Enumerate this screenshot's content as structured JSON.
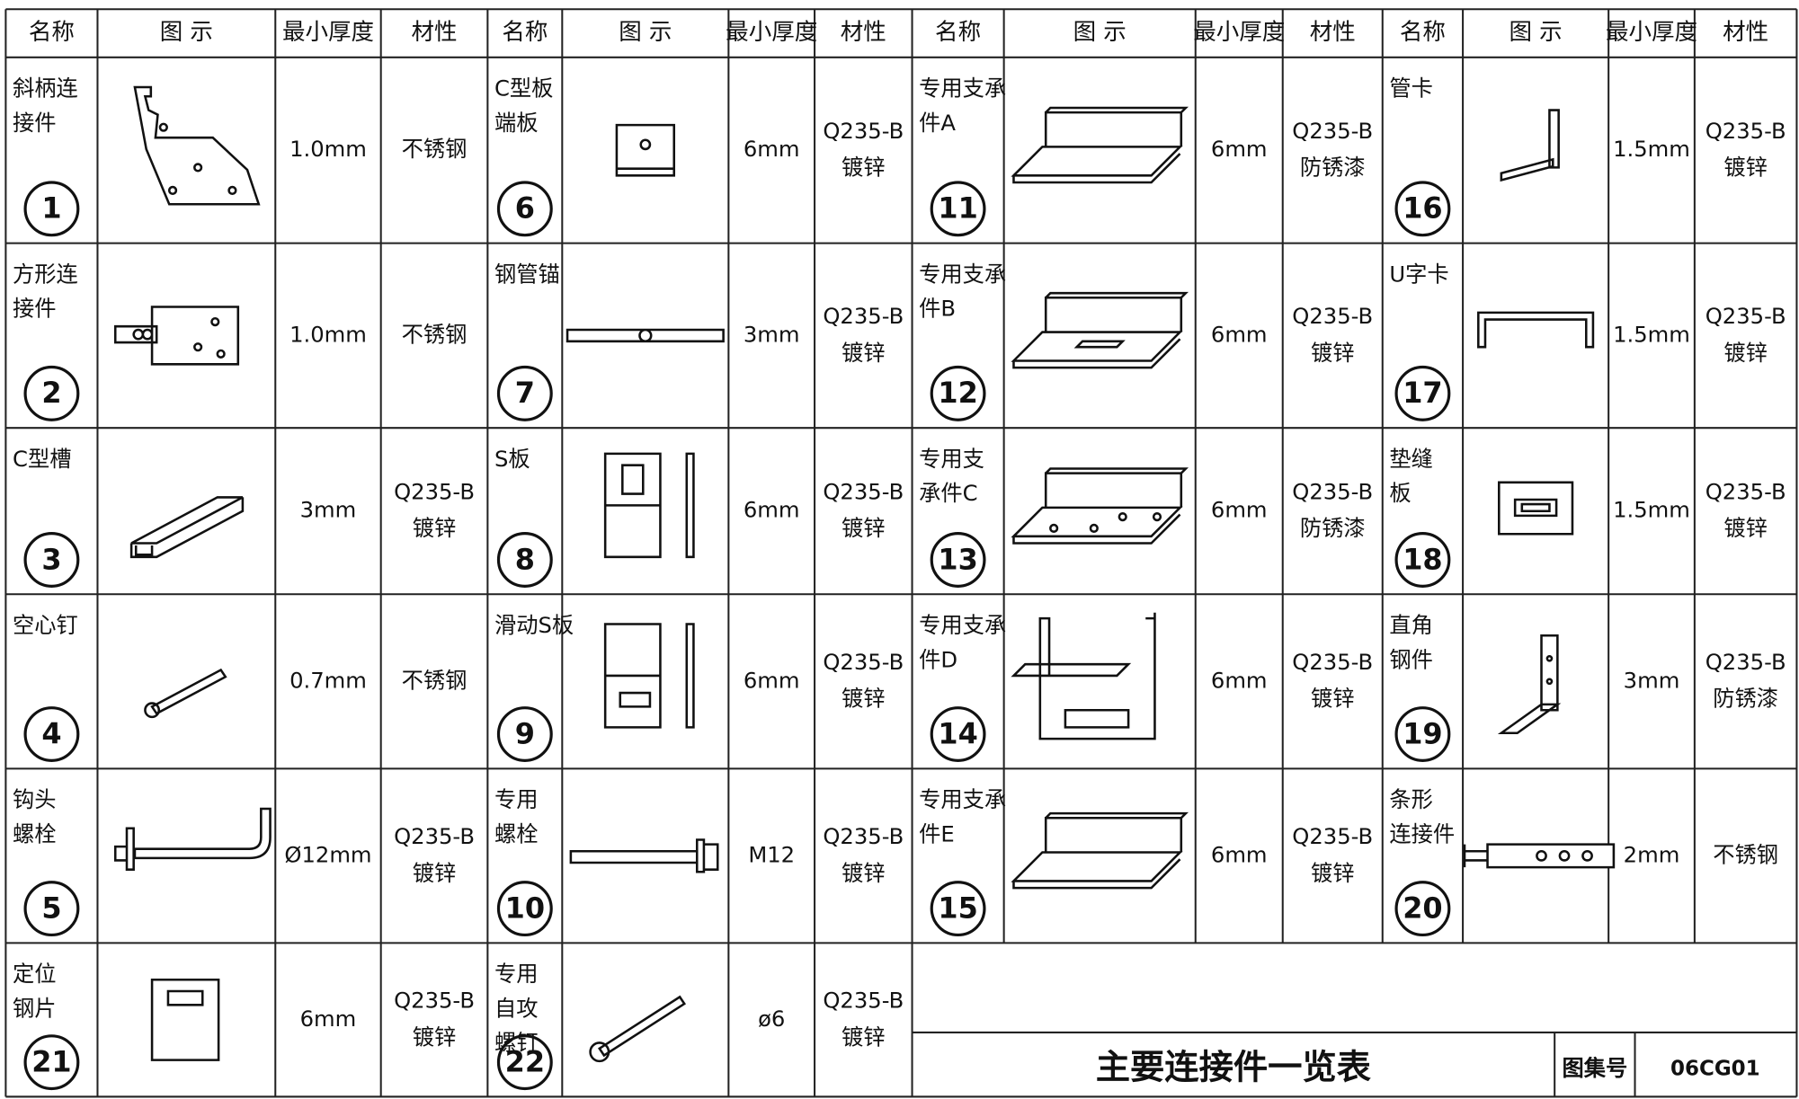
{
  "header": {
    "columns": [
      "名称",
      "图  示",
      "最小厚度",
      "材性"
    ]
  },
  "items": [
    {
      "number": "1",
      "name": [
        "斜柄连",
        "接件"
      ],
      "thickness": "1.0mm",
      "material": [
        "不锈钢"
      ]
    },
    {
      "number": "2",
      "name": [
        "方形连",
        "接件"
      ],
      "thickness": "1.0mm",
      "material": [
        "不锈钢"
      ]
    },
    {
      "number": "3",
      "name": [
        "C型槽"
      ],
      "thickness": "3mm",
      "material": [
        "Q235-B",
        "镀锌"
      ]
    },
    {
      "number": "4",
      "name": [
        "空心钉"
      ],
      "thickness": "0.7mm",
      "material": [
        "不锈钢"
      ]
    },
    {
      "number": "5",
      "name": [
        "钩头",
        "螺栓"
      ],
      "thickness": "Ø12mm",
      "material": [
        "Q235-B",
        "镀锌"
      ]
    },
    {
      "number": "6",
      "name": [
        "C型板",
        "端板"
      ],
      "thickness": "6mm",
      "material": [
        "Q235-B",
        "镀锌"
      ]
    },
    {
      "number": "7",
      "name": [
        "钢管锚"
      ],
      "thickness": "3mm",
      "material": [
        "Q235-B",
        "镀锌"
      ]
    },
    {
      "number": "8",
      "name": [
        "S板"
      ],
      "thickness": "6mm",
      "material": [
        "Q235-B",
        "镀锌"
      ]
    },
    {
      "number": "9",
      "name": [
        "滑动S板"
      ],
      "thickness": "6mm",
      "material": [
        "Q235-B",
        "镀锌"
      ]
    },
    {
      "number": "10",
      "name": [
        "专用",
        "螺栓"
      ],
      "thickness": "M12",
      "material": [
        "Q235-B",
        "镀锌"
      ]
    },
    {
      "number": "11",
      "name": [
        "专用支承",
        "件A"
      ],
      "thickness": "6mm",
      "material": [
        "Q235-B",
        "防锈漆"
      ]
    },
    {
      "number": "12",
      "name": [
        "专用支承",
        "件B"
      ],
      "thickness": "6mm",
      "material": [
        "Q235-B",
        "镀锌"
      ]
    },
    {
      "number": "13",
      "name": [
        "专用支",
        "承件C"
      ],
      "thickness": "6mm",
      "material": [
        "Q235-B",
        "防锈漆"
      ]
    },
    {
      "number": "14",
      "name": [
        "专用支承",
        "件D"
      ],
      "thickness": "6mm",
      "material": [
        "Q235-B",
        "镀锌"
      ]
    },
    {
      "number": "15",
      "name": [
        "专用支承",
        "件E"
      ],
      "thickness": "6mm",
      "material": [
        "Q235-B",
        "镀锌"
      ]
    },
    {
      "number": "16",
      "name": [
        "管卡"
      ],
      "thickness": "1.5mm",
      "material": [
        "Q235-B",
        "镀锌"
      ]
    },
    {
      "number": "17",
      "name": [
        "U字卡"
      ],
      "thickness": "1.5mm",
      "material": [
        "Q235-B",
        "镀锌"
      ]
    },
    {
      "number": "18",
      "name": [
        "垫缝",
        "板"
      ],
      "thickness": "1.5mm",
      "material": [
        "Q235-B",
        "镀锌"
      ]
    },
    {
      "number": "19",
      "name": [
        "直角",
        "钢件"
      ],
      "thickness": "3mm",
      "material": [
        "Q235-B",
        "防锈漆"
      ]
    },
    {
      "number": "20",
      "name": [
        "条形",
        "连接件"
      ],
      "thickness": "2mm",
      "material": [
        "不锈钢"
      ]
    },
    {
      "number": "21",
      "name": [
        "定位",
        "钢片"
      ],
      "thickness": "6mm",
      "material": [
        "Q235-B",
        "镀锌"
      ]
    },
    {
      "number": "22",
      "name": [
        "专用",
        "自攻",
        "螺钉"
      ],
      "thickness": "ø6",
      "material": [
        "Q235-B",
        "镀锌"
      ]
    }
  ],
  "title_block": {
    "title": "主要连接件一览表",
    "atlas_label": "图集号",
    "atlas_number": "06CG01"
  }
}
